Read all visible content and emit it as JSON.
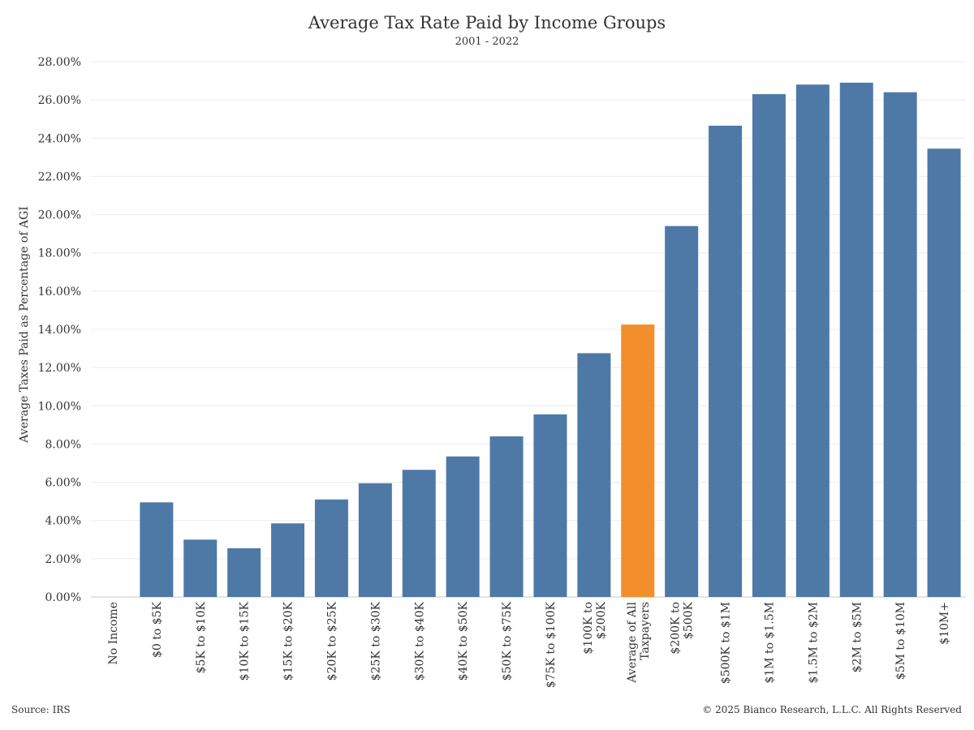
{
  "chart_data": {
    "type": "bar",
    "title": "Average Tax Rate Paid by Income Groups",
    "subtitle": "2001 - 2022",
    "ylabel": "Average Taxes Paid as Percentage of AGI",
    "xlabel": "",
    "ylim": [
      0,
      28
    ],
    "y_ticks": [
      0,
      2,
      4,
      6,
      8,
      10,
      12,
      14,
      16,
      18,
      20,
      22,
      24,
      26,
      28
    ],
    "y_tick_labels": [
      "0.00%",
      "2.00%",
      "4.00%",
      "6.00%",
      "8.00%",
      "10.00%",
      "12.00%",
      "14.00%",
      "16.00%",
      "18.00%",
      "20.00%",
      "22.00%",
      "24.00%",
      "26.00%",
      "28.00%"
    ],
    "grid": true,
    "categories": [
      [
        "No Income"
      ],
      [
        "$0 to $5K"
      ],
      [
        "$5K to $10K"
      ],
      [
        "$10K to $15K"
      ],
      [
        "$15K to $20K"
      ],
      [
        "$20K to $25K"
      ],
      [
        "$25K to $30K"
      ],
      [
        "$30K to $40K"
      ],
      [
        "$40K to $50K"
      ],
      [
        "$50K to $75K"
      ],
      [
        "$75K to $100K"
      ],
      [
        "$100K to",
        "$200K"
      ],
      [
        "Average of All",
        "Taxpayers"
      ],
      [
        "$200K to",
        "$500K"
      ],
      [
        "$500K to $1M"
      ],
      [
        "$1M to $1.5M"
      ],
      [
        "$1.5M to $2M"
      ],
      [
        "$2M to $5M"
      ],
      [
        "$5M to $10M"
      ],
      [
        "$10M+"
      ]
    ],
    "values": [
      0,
      4.95,
      3.0,
      2.55,
      3.85,
      5.1,
      5.95,
      6.65,
      7.35,
      8.4,
      9.55,
      12.75,
      14.25,
      19.4,
      24.65,
      26.3,
      26.8,
      26.9,
      26.4,
      23.45
    ],
    "colors": {
      "default": "#4e79a7",
      "highlight": "#f28e2b",
      "grid": "#ececec",
      "zero_line": "#c8c8c8"
    },
    "highlight_index": 12
  },
  "footer": {
    "source": "Source: IRS",
    "copyright": "© 2025 Bianco Research, L.L.C. All Rights Reserved"
  }
}
